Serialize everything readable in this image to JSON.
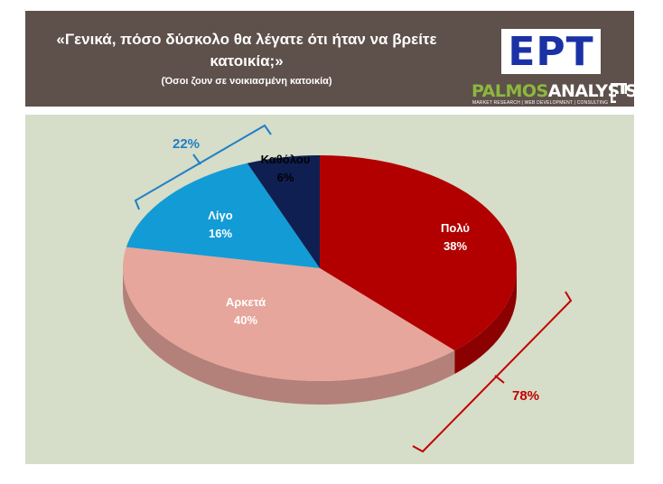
{
  "header": {
    "title": "«Γενικά, πόσο δύσκολο θα λέγατε ότι ήταν να βρείτε κατοικία;»",
    "subtitle": "(Όσοι ζουν σε νοικιασμένη κατοικία)",
    "ert_logo": "ΕΡΤ",
    "palmos_part1": "PALMOS",
    "palmos_part2": "ANALYSIS",
    "palmos_tagline": "MARKET RESEARCH | WEB DEVELOPMENT | CONSULTING"
  },
  "colors": {
    "header_bg": "#5e504b",
    "panel_bg": "#d6ddc8",
    "poly": "#b20000",
    "arketa": "#e6a69b",
    "ligo": "#139bd6",
    "katholou": "#0f1f52",
    "bracket_blue": "#1f7fc6",
    "bracket_red": "#c00000"
  },
  "chart_data": {
    "type": "pie",
    "title": "«Γενικά, πόσο δύσκολο θα λέγατε ότι ήταν να βρείτε κατοικία;»",
    "subtitle": "(Όσοι ζουν σε νοικιασμένη κατοικία)",
    "categories": [
      "Πολύ",
      "Αρκετά",
      "Λίγο",
      "Καθόλου"
    ],
    "values": [
      38,
      40,
      16,
      6
    ],
    "value_labels": [
      "38%",
      "40%",
      "16%",
      "6%"
    ],
    "style": "3d",
    "groups": [
      {
        "label": "78%",
        "members": [
          "Πολύ",
          "Αρκετά"
        ]
      },
      {
        "label": "22%",
        "members": [
          "Λίγο",
          "Καθόλου"
        ]
      }
    ]
  }
}
